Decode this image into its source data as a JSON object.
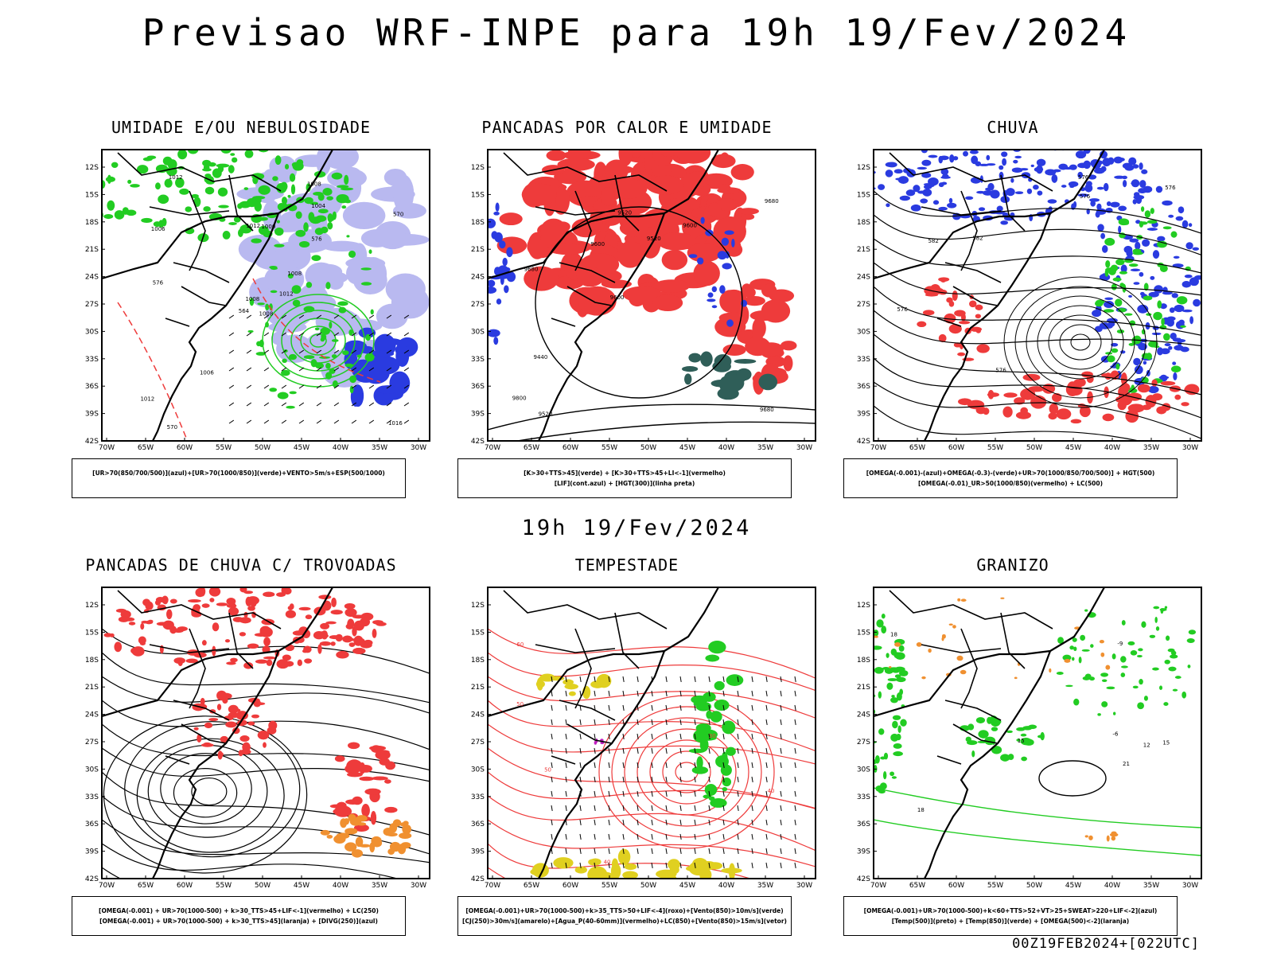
{
  "header": {
    "title": "Previsao WRF-INPE  para 19h 19/Fev/2024"
  },
  "mid_date": "19h 19/Fev/2024",
  "footer": "00Z19FEB2024+[022UTC]",
  "axes": {
    "lat_labels": [
      "12S",
      "15S",
      "18S",
      "21S",
      "24S",
      "27S",
      "30S",
      "33S",
      "36S",
      "39S",
      "42S"
    ],
    "lon_labels": [
      "70W",
      "65W",
      "60W",
      "55W",
      "50W",
      "45W",
      "40W",
      "35W",
      "30W"
    ]
  },
  "colors": {
    "red": "#ee3b3b",
    "green": "#22cc22",
    "blue": "#2a3be0",
    "lavender": "#b9b9f0",
    "orange": "#f09030",
    "teal": "#2f5e58",
    "yellow": "#e0d020",
    "dark_green": "#138a13",
    "magenta": "#c020c0"
  },
  "panels": [
    {
      "title": "UMIDADE E/OU NEBULOSIDADE",
      "legend": [
        "[UR>70(850/700/500)](azul)+[UR>70(1000/850)](verde)+VENTO>5m/s+ESP(500/1000)"
      ],
      "labels": [
        "1008",
        "1006",
        "1008",
        "1012",
        "1008",
        "1006",
        "1008",
        "1000",
        "1004",
        "1012",
        "1012",
        "1016",
        "576",
        "570",
        "564",
        "576",
        "570",
        "1012"
      ]
    },
    {
      "title": "PANCADAS POR CALOR E UMIDADE",
      "legend": [
        "[K>30+TTS>45](verde) + [K>30+TTS>45+LI<-1](vermelho)",
        "[LIF](cont.azul) + [HGT(300)](linha preta)"
      ],
      "labels": [
        "9680",
        "9680",
        "9680",
        "9600",
        "9600",
        "9520",
        "9520",
        "9520",
        "9440",
        "9600",
        "9800"
      ]
    },
    {
      "title": "CHUVA",
      "legend": [
        "[OMEGA(-0.001)-(azul)+OMEGA(-0.3)-(verde)+UR>70(1000/850/700/500)] + HGT(500)",
        "[OMEGA(-0.01)_UR>50(1000/850)(vermelho) + LC(500)"
      ],
      "labels": [
        "582",
        "576",
        "576",
        "576",
        "576",
        "576",
        "582"
      ]
    },
    {
      "title": "PANCADAS DE CHUVA C/ TROVOADAS",
      "legend": [
        "[OMEGA(-0.001) + UR>70(1000-500) + k>30_TTS>45+LIF<-1](vermelho) + LC(250)",
        "[OMEGA(-0.001) + UR>70(1000-500) + k>30_TTS>45](laranja) + [DIVG(250)](azul)"
      ],
      "labels": []
    },
    {
      "title": "TEMPESTADE",
      "legend": [
        "[OMEGA(-0.001)+UR>70(1000-500)+k>35_TTS>50+LIF<-4](roxo)+[Vento(850)>10m/s](verde)",
        "[CJ(250)>30m/s](amarelo)+[Agua_P(40-60mm)](vermelho)+LC(850)+[Vento(850)>15m/s](vetor)"
      ],
      "labels": [
        "60",
        "50",
        "40",
        "30",
        "40",
        "50"
      ]
    },
    {
      "title": "GRANIZO",
      "legend": [
        "[OMEGA(-0.001)+UR>70(1000-500)+k<60+TTS>52+VT>25+SWEAT>220+LIF<-2](azul)",
        "[Temp(500)](preto) + [Temp(850)](verde) + [OMEGA(500)<-2](laranja)"
      ],
      "labels": [
        "15",
        "18",
        "21",
        "18",
        "15",
        "12",
        "-6",
        "-9"
      ]
    }
  ]
}
